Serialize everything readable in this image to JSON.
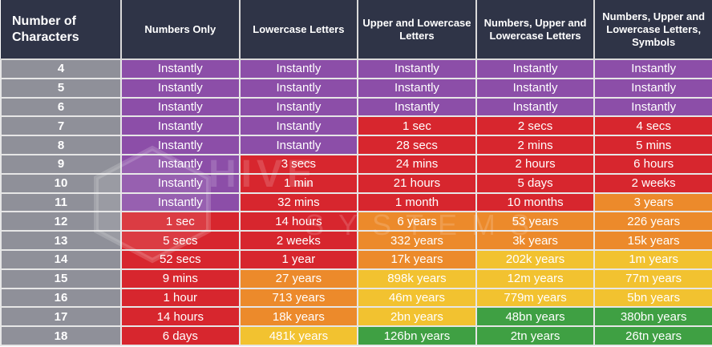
{
  "colors": {
    "header_bg": "#2f3447",
    "row_head_bg": "#8f9099",
    "instantly": "#8c4ea8",
    "red": "#d7262e",
    "orange": "#ec8a2b",
    "yellow": "#f2c230",
    "green": "#3fa043"
  },
  "watermark": {
    "line1": "HIVE",
    "line2": "SYSTEMS"
  },
  "table": {
    "headers": [
      "Number of Characters",
      "Numbers Only",
      "Lowercase Letters",
      "Upper and Lowercase Letters",
      "Numbers, Upper and Lowercase Letters",
      "Numbers, Upper and Lowercase Letters, Symbols"
    ],
    "rows": [
      {
        "chars": "4",
        "cells": [
          {
            "text": "Instantly",
            "level": "instant"
          },
          {
            "text": "Instantly",
            "level": "instant"
          },
          {
            "text": "Instantly",
            "level": "instant"
          },
          {
            "text": "Instantly",
            "level": "instant"
          },
          {
            "text": "Instantly",
            "level": "instant"
          }
        ]
      },
      {
        "chars": "5",
        "cells": [
          {
            "text": "Instantly",
            "level": "instant"
          },
          {
            "text": "Instantly",
            "level": "instant"
          },
          {
            "text": "Instantly",
            "level": "instant"
          },
          {
            "text": "Instantly",
            "level": "instant"
          },
          {
            "text": "Instantly",
            "level": "instant"
          }
        ]
      },
      {
        "chars": "6",
        "cells": [
          {
            "text": "Instantly",
            "level": "instant"
          },
          {
            "text": "Instantly",
            "level": "instant"
          },
          {
            "text": "Instantly",
            "level": "instant"
          },
          {
            "text": "Instantly",
            "level": "instant"
          },
          {
            "text": "Instantly",
            "level": "instant"
          }
        ]
      },
      {
        "chars": "7",
        "cells": [
          {
            "text": "Instantly",
            "level": "instant"
          },
          {
            "text": "Instantly",
            "level": "instant"
          },
          {
            "text": "1 sec",
            "level": "red"
          },
          {
            "text": "2 secs",
            "level": "red"
          },
          {
            "text": "4 secs",
            "level": "red"
          }
        ]
      },
      {
        "chars": "8",
        "cells": [
          {
            "text": "Instantly",
            "level": "instant"
          },
          {
            "text": "Instantly",
            "level": "instant"
          },
          {
            "text": "28 secs",
            "level": "red"
          },
          {
            "text": "2 mins",
            "level": "red"
          },
          {
            "text": "5 mins",
            "level": "red"
          }
        ]
      },
      {
        "chars": "9",
        "cells": [
          {
            "text": "Instantly",
            "level": "instant"
          },
          {
            "text": "3 secs",
            "level": "red"
          },
          {
            "text": "24 mins",
            "level": "red"
          },
          {
            "text": "2 hours",
            "level": "red"
          },
          {
            "text": "6 hours",
            "level": "red"
          }
        ]
      },
      {
        "chars": "10",
        "cells": [
          {
            "text": "Instantly",
            "level": "instant"
          },
          {
            "text": "1 min",
            "level": "red"
          },
          {
            "text": "21 hours",
            "level": "red"
          },
          {
            "text": "5 days",
            "level": "red"
          },
          {
            "text": "2 weeks",
            "level": "red"
          }
        ]
      },
      {
        "chars": "11",
        "cells": [
          {
            "text": "Instantly",
            "level": "instant"
          },
          {
            "text": "32 mins",
            "level": "red"
          },
          {
            "text": "1 month",
            "level": "red"
          },
          {
            "text": "10 months",
            "level": "red"
          },
          {
            "text": "3 years",
            "level": "orange"
          }
        ]
      },
      {
        "chars": "12",
        "cells": [
          {
            "text": "1 sec",
            "level": "red"
          },
          {
            "text": "14 hours",
            "level": "red"
          },
          {
            "text": "6 years",
            "level": "orange"
          },
          {
            "text": "53 years",
            "level": "orange"
          },
          {
            "text": "226 years",
            "level": "orange"
          }
        ]
      },
      {
        "chars": "13",
        "cells": [
          {
            "text": "5 secs",
            "level": "red"
          },
          {
            "text": "2 weeks",
            "level": "red"
          },
          {
            "text": "332 years",
            "level": "orange"
          },
          {
            "text": "3k years",
            "level": "orange"
          },
          {
            "text": "15k years",
            "level": "orange"
          }
        ]
      },
      {
        "chars": "14",
        "cells": [
          {
            "text": "52 secs",
            "level": "red"
          },
          {
            "text": "1 year",
            "level": "red"
          },
          {
            "text": "17k years",
            "level": "orange"
          },
          {
            "text": "202k years",
            "level": "yellow"
          },
          {
            "text": "1m years",
            "level": "yellow"
          }
        ]
      },
      {
        "chars": "15",
        "cells": [
          {
            "text": "9 mins",
            "level": "red"
          },
          {
            "text": "27 years",
            "level": "orange"
          },
          {
            "text": "898k years",
            "level": "yellow"
          },
          {
            "text": "12m years",
            "level": "yellow"
          },
          {
            "text": "77m years",
            "level": "yellow"
          }
        ]
      },
      {
        "chars": "16",
        "cells": [
          {
            "text": "1 hour",
            "level": "red"
          },
          {
            "text": "713 years",
            "level": "orange"
          },
          {
            "text": "46m years",
            "level": "yellow"
          },
          {
            "text": "779m years",
            "level": "yellow"
          },
          {
            "text": "5bn years",
            "level": "yellow"
          }
        ]
      },
      {
        "chars": "17",
        "cells": [
          {
            "text": "14 hours",
            "level": "red"
          },
          {
            "text": "18k years",
            "level": "orange"
          },
          {
            "text": "2bn years",
            "level": "yellow"
          },
          {
            "text": "48bn years",
            "level": "green"
          },
          {
            "text": "380bn years",
            "level": "green"
          }
        ]
      },
      {
        "chars": "18",
        "cells": [
          {
            "text": "6 days",
            "level": "red"
          },
          {
            "text": "481k years",
            "level": "yellow"
          },
          {
            "text": "126bn years",
            "level": "green"
          },
          {
            "text": "2tn years",
            "level": "green"
          },
          {
            "text": "26tn years",
            "level": "green"
          }
        ]
      }
    ]
  }
}
